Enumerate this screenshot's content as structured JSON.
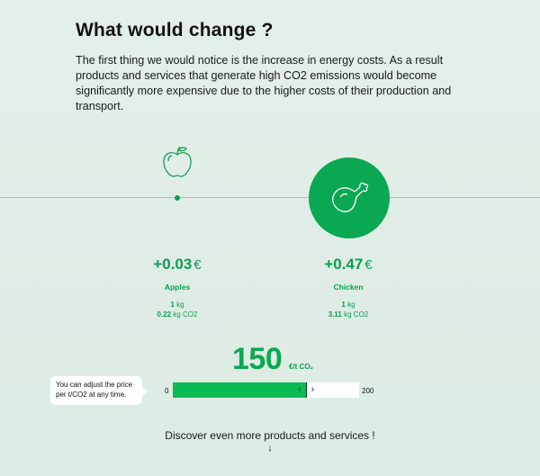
{
  "heading": "What would change ?",
  "intro": "The first thing we would notice is the increase in energy costs. As a result products and services that generate high CO2 emissions would become significantly more expensive due to the higher costs of their production and transport.",
  "products": [
    {
      "icon": "apple-icon",
      "price": "+0.03",
      "currency": "€",
      "name": "Apples",
      "qty_num": "1",
      "qty_unit": "kg",
      "co2_num": "0.22",
      "co2_unit": "kg CO2",
      "selected": false
    },
    {
      "icon": "chicken-leg-icon",
      "price": "+0.47",
      "currency": "€",
      "name": "Chicken",
      "qty_num": "1",
      "qty_unit": "kg",
      "co2_num": "3.11",
      "co2_unit": "kg CO2",
      "selected": true
    }
  ],
  "co2_price": {
    "value": "150",
    "unit": "€/t CO₂",
    "min": "0",
    "max": "200",
    "current": 150,
    "tooltip": "You can adjust the price per t/CO2 at any time."
  },
  "footer": {
    "discover": "Discover even more products and services !",
    "arrow": "↓"
  },
  "colors": {
    "accent": "#0aa852",
    "background": "#e3efe8",
    "line": "#8fd4ad"
  }
}
